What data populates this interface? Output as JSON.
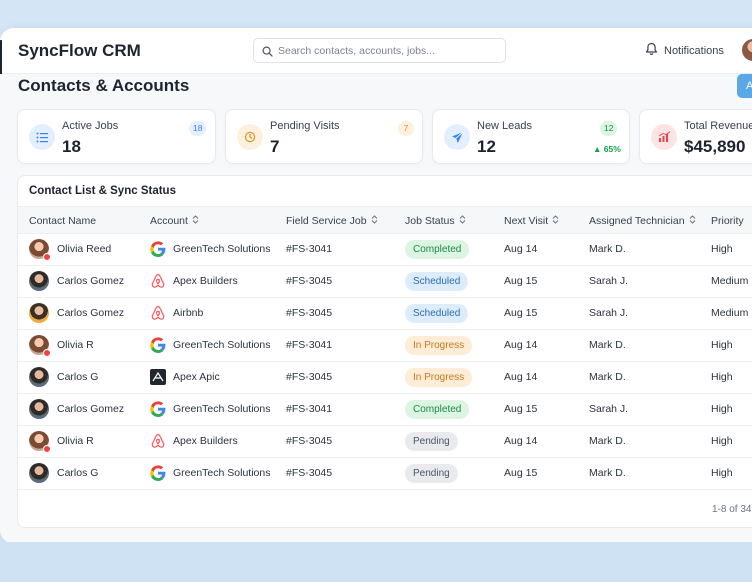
{
  "app": {
    "name": "SyncFlow CRM"
  },
  "search": {
    "placeholder": "Search contacts, accounts, jobs..."
  },
  "notifications": {
    "label": "Notifications"
  },
  "page": {
    "title": "Contacts & Accounts",
    "add_button": "A"
  },
  "stats": [
    {
      "label": "Active Jobs",
      "value": "18",
      "badge": "18",
      "icon": "list-icon",
      "color": "#3b82f6"
    },
    {
      "label": "Pending Visits",
      "value": "7",
      "badge": "7",
      "icon": "clock-icon",
      "color": "#f59e0b"
    },
    {
      "label": "New Leads",
      "value": "12",
      "badge": "12",
      "trend": "65%",
      "icon": "paper-plane-icon",
      "color": "#3b82f6"
    },
    {
      "label": "Total Revenue",
      "value": "$45,890",
      "icon": "chart-up-icon",
      "color": "#ef4444"
    }
  ],
  "table": {
    "title": "Contact List & Sync Status",
    "columns": [
      "Contact Name",
      "Account",
      "Field Service Job",
      "Job Status",
      "Next Visit",
      "Assigned Technician",
      "Priority"
    ],
    "rows": [
      {
        "name": "Olivia Reed",
        "account": "GreenTech Solutions",
        "logo": "google",
        "job": "#FS-3041",
        "status": "Completed",
        "status_kind": "completed",
        "visit": "Aug 14",
        "tech": "Mark D.",
        "priority": "High",
        "avatar": "female"
      },
      {
        "name": "Carlos Gomez",
        "account": "Apex Builders",
        "logo": "airbnb",
        "job": "#FS-3045",
        "status": "Scheduled",
        "status_kind": "scheduled",
        "visit": "Aug 15",
        "tech": "Sarah J.",
        "priority": "Medium",
        "avatar": "male"
      },
      {
        "name": "Carlos Gomez",
        "account": "Airbnb",
        "logo": "airbnb",
        "job": "#FS-3045",
        "status": "Scheduled",
        "status_kind": "scheduled",
        "visit": "Aug 15",
        "tech": "Sarah J.",
        "priority": "Medium",
        "avatar": "male-alt"
      },
      {
        "name": "Olivia R",
        "account": "GreenTech Solutions",
        "logo": "google",
        "job": "#FS-3041",
        "status": "In Progress",
        "status_kind": "progress",
        "visit": "Aug 14",
        "tech": "Mark D.",
        "priority": "High",
        "avatar": "female"
      },
      {
        "name": "Carlos G",
        "account": "Apex Apic",
        "logo": "dark",
        "job": "#FS-3045",
        "status": "In Progress",
        "status_kind": "progress",
        "visit": "Aug 14",
        "tech": "Mark D.",
        "priority": "High",
        "avatar": "male"
      },
      {
        "name": "Carlos Gomez",
        "account": "GreenTech Solutions",
        "logo": "google",
        "job": "#FS-3041",
        "status": "Completed",
        "status_kind": "completed",
        "visit": "Aug 15",
        "tech": "Sarah J.",
        "priority": "High",
        "avatar": "male"
      },
      {
        "name": "Olivia R",
        "account": "Apex Builders",
        "logo": "airbnb",
        "job": "#FS-3045",
        "status": "Pending",
        "status_kind": "pending",
        "visit": "Aug 14",
        "tech": "Mark D.",
        "priority": "High",
        "avatar": "female"
      },
      {
        "name": "Carlos G",
        "account": "GreenTech Solutions",
        "logo": "google",
        "job": "#FS-3045",
        "status": "Pending",
        "status_kind": "pending",
        "visit": "Aug 15",
        "tech": "Mark D.",
        "priority": "High",
        "avatar": "male"
      }
    ],
    "pagination": "1-8 of 34"
  }
}
